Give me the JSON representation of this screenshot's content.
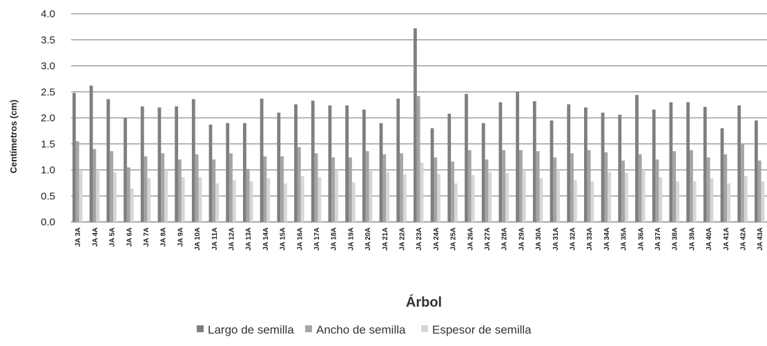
{
  "chart_data": {
    "type": "bar",
    "title": "",
    "xlabel": "Árbol",
    "ylabel": "Centímetros (cm)",
    "ylim": [
      0,
      4.0
    ],
    "y_ticks": [
      "0.0",
      "0.5",
      "1.0",
      "1.5",
      "2.0",
      "2.5",
      "3.0",
      "3.5",
      "4.0"
    ],
    "grid": true,
    "legend_position": "bottom",
    "categories": [
      "JA 3A",
      "JA 4A",
      "JA 5A",
      "JA 6A",
      "JA 7A",
      "JA 8A",
      "JA 9A",
      "JA 10A",
      "JA 11A",
      "JA 12A",
      "JA 13A",
      "JA 14A",
      "JA 15A",
      "JA 16A",
      "JA 17A",
      "JA 18A",
      "JA 19A",
      "JA 20A",
      "JA 21A",
      "JA 22A",
      "JA 23A",
      "JA 24A",
      "JA 25A",
      "JA 26A",
      "JA 27A",
      "JA 28A",
      "JA 29A",
      "JA 30A",
      "JA 31A",
      "JA 32A",
      "JA 33A",
      "JA 34A",
      "JA 35A",
      "JA 36A",
      "JA 37A",
      "JA 38A",
      "JA 39A",
      "JA 40A",
      "JA 41A",
      "JA 42A",
      "JA 43A"
    ],
    "series": [
      {
        "name": "Largo de semilla",
        "color": "#7f7f7f",
        "values": [
          2.48,
          2.62,
          2.36,
          2.0,
          2.22,
          2.2,
          2.22,
          2.36,
          1.87,
          1.9,
          1.9,
          2.37,
          2.1,
          2.26,
          2.33,
          2.24,
          2.24,
          2.16,
          1.9,
          2.37,
          3.72,
          1.8,
          2.08,
          2.46,
          1.9,
          2.3,
          2.5,
          2.32,
          1.95,
          2.26,
          2.2,
          2.1,
          2.06,
          2.44,
          2.16,
          2.3,
          2.3,
          2.21,
          1.8,
          2.24,
          1.95
        ]
      },
      {
        "name": "Ancho de semilla",
        "color": "#a5a5a5",
        "values": [
          1.55,
          1.4,
          1.36,
          1.05,
          1.26,
          1.32,
          1.2,
          1.3,
          1.2,
          1.32,
          1.02,
          1.26,
          1.26,
          1.44,
          1.32,
          1.24,
          1.24,
          1.36,
          1.3,
          1.32,
          2.42,
          1.24,
          1.16,
          1.38,
          1.2,
          1.38,
          1.38,
          1.36,
          1.24,
          1.32,
          1.38,
          1.34,
          1.18,
          1.3,
          1.2,
          1.36,
          1.38,
          1.24,
          1.3,
          1.5,
          1.18
        ]
      },
      {
        "name": "Espesor de semilla",
        "color": "#d6d6d6",
        "values": [
          0.98,
          0.98,
          0.95,
          0.64,
          0.84,
          0.98,
          0.86,
          0.86,
          0.74,
          0.8,
          0.78,
          0.84,
          0.74,
          0.88,
          0.86,
          0.98,
          0.76,
          0.98,
          0.96,
          0.92,
          1.14,
          0.92,
          0.74,
          0.9,
          0.96,
          0.94,
          0.98,
          0.84,
          0.98,
          0.8,
          0.78,
          0.96,
          0.94,
          0.98,
          0.86,
          0.78,
          0.78,
          0.84,
          0.74,
          0.88,
          0.78
        ]
      }
    ]
  }
}
